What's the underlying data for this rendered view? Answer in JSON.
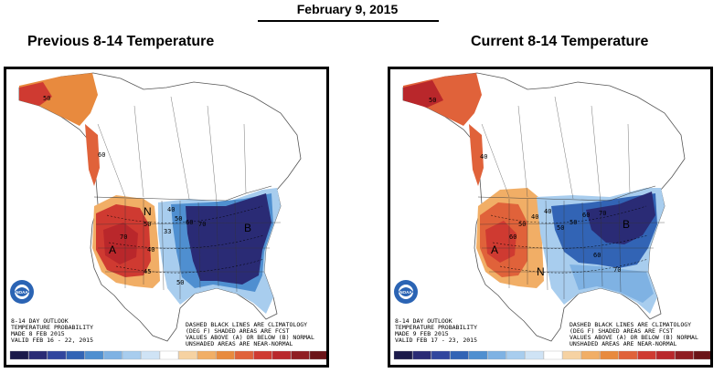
{
  "header": {
    "date": "February 9, 2015"
  },
  "panels": [
    {
      "title": "Previous 8-14 Temperature",
      "outlook_line1": "8-14 DAY OUTLOOK",
      "outlook_line2": "TEMPERATURE PROBABILITY",
      "made": "MADE  8 FEB 2015",
      "valid": "VALID  FEB 16 - 22, 2015",
      "note_line1": "DASHED BLACK LINES ARE CLIMATOLOGY",
      "note_line2": "(DEG F) SHADED AREAS ARE FCST",
      "note_line3": "VALUES ABOVE (A) OR BELOW (B) NORMAL",
      "note_line4": "UNSHADED AREAS ARE NEAR-NORMAL",
      "labels": {
        "above": "A",
        "below": "B",
        "normal": "N"
      },
      "contour_labels": [
        "50",
        "60",
        "70",
        "50",
        "40",
        "50",
        "60",
        "70",
        "33",
        "40",
        "45",
        "50"
      ]
    },
    {
      "title": "Current 8-14 Temperature",
      "outlook_line1": "8-14 DAY OUTLOOK",
      "outlook_line2": "TEMPERATURE PROBABILITY",
      "made": "MADE  9 FEB 2015",
      "valid": "VALID  FEB 17 - 23, 2015",
      "note_line1": "DASHED BLACK LINES ARE CLIMATOLOGY",
      "note_line2": "(DEG F) SHADED AREAS ARE FCST",
      "note_line3": "VALUES ABOVE (A) OR BELOW (B) NORMAL",
      "note_line4": "UNSHADED AREAS ARE NEAR-NORMAL",
      "labels": {
        "above": "A",
        "below": "B",
        "normal": "N"
      },
      "contour_labels": [
        "50",
        "40",
        "60",
        "40",
        "50",
        "60",
        "70",
        "50",
        "60",
        "70",
        "40",
        "50"
      ]
    }
  ],
  "legend_colors": [
    "#1b1a4a",
    "#2a2b75",
    "#31469e",
    "#3264b5",
    "#4f8fd0",
    "#7fb2e3",
    "#a8cdee",
    "#cfe3f5",
    "#ffffff",
    "#f6d2a2",
    "#f1ae66",
    "#e88a3e",
    "#e0623a",
    "#cf3a31",
    "#b9272b",
    "#8f1d22",
    "#6b1418"
  ],
  "noaa_logo": {
    "text": "NOAA",
    "icon": "noaa-logo-icon"
  }
}
